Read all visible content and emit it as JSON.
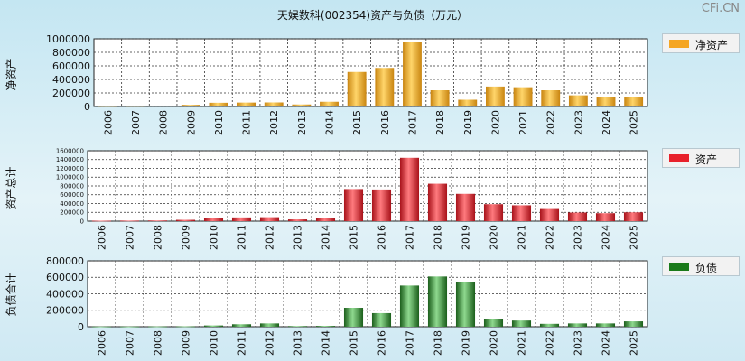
{
  "title": "天娱数科(002354)资产与负债（万元）",
  "watermark": "CFi.CN",
  "chart_data": [
    {
      "type": "bar",
      "ylabel": "净资产",
      "legend": "净资产",
      "color": "#f5a623",
      "categories": [
        "2006",
        "2007",
        "2008",
        "2009",
        "2010",
        "2011",
        "2012",
        "2013",
        "2014",
        "2015",
        "2016",
        "2017",
        "2018",
        "2019",
        "2020",
        "2021",
        "2022",
        "2023",
        "2024",
        "2025"
      ],
      "values": [
        8000,
        9000,
        11000,
        25000,
        55000,
        58000,
        60000,
        30000,
        70000,
        510000,
        570000,
        960000,
        240000,
        100000,
        295000,
        285000,
        240000,
        165000,
        135000,
        135000
      ],
      "ylim": [
        0,
        1000000
      ],
      "yticks": [
        0,
        200000,
        400000,
        600000,
        800000,
        1000000
      ],
      "grid": true,
      "legend_position": "right"
    },
    {
      "type": "bar",
      "ylabel": "资产总计",
      "legend": "资产",
      "color": "#e8202a",
      "categories": [
        "2006",
        "2007",
        "2008",
        "2009",
        "2010",
        "2011",
        "2012",
        "2013",
        "2014",
        "2015",
        "2016",
        "2017",
        "2018",
        "2019",
        "2020",
        "2021",
        "2022",
        "2023",
        "2024",
        "2025"
      ],
      "values": [
        10000,
        12000,
        15000,
        30000,
        65000,
        85000,
        90000,
        40000,
        80000,
        730000,
        720000,
        1440000,
        850000,
        620000,
        385000,
        360000,
        275000,
        195000,
        180000,
        200000
      ],
      "ylim": [
        0,
        1600000
      ],
      "yticks": [
        0,
        200000,
        400000,
        600000,
        800000,
        1000000,
        1200000,
        1400000,
        1600000
      ],
      "grid": true,
      "legend_position": "right"
    },
    {
      "type": "bar",
      "ylabel": "负债合计",
      "legend": "负债",
      "color": "#1a7a1a",
      "categories": [
        "2006",
        "2007",
        "2008",
        "2009",
        "2010",
        "2011",
        "2012",
        "2013",
        "2014",
        "2015",
        "2016",
        "2017",
        "2018",
        "2019",
        "2020",
        "2021",
        "2022",
        "2023",
        "2024",
        "2025"
      ],
      "values": [
        3000,
        3000,
        4000,
        5000,
        15000,
        30000,
        40000,
        8000,
        10000,
        230000,
        165000,
        500000,
        610000,
        545000,
        90000,
        75000,
        35000,
        40000,
        40000,
        65000
      ],
      "ylim": [
        0,
        800000
      ],
      "yticks": [
        0,
        200000,
        400000,
        600000,
        800000
      ],
      "grid": true,
      "legend_position": "right"
    }
  ]
}
